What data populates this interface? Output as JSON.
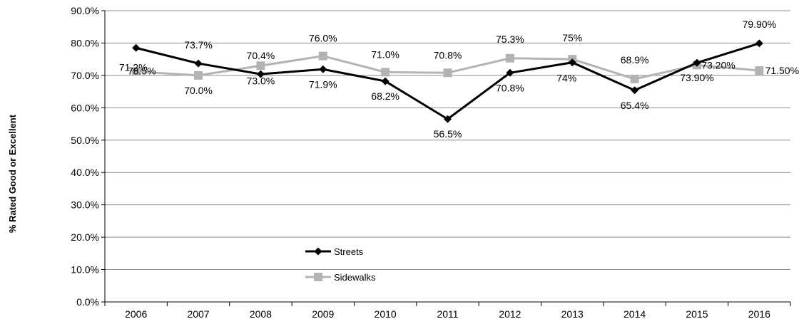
{
  "chart_data": {
    "type": "line",
    "ylabel": "% Rated Good or Excellent",
    "categories": [
      "2006",
      "2007",
      "2008",
      "2009",
      "2010",
      "2011",
      "2012",
      "2013",
      "2014",
      "2015",
      "2016"
    ],
    "ylim": [
      0,
      90
    ],
    "yticks": [
      0,
      10,
      20,
      30,
      40,
      50,
      60,
      70,
      80,
      90
    ],
    "ytick_labels": [
      "0.0%",
      "10.0%",
      "20.0%",
      "30.0%",
      "40.0%",
      "50.0%",
      "60.0%",
      "70.0%",
      "80.0%",
      "90.0%"
    ],
    "grid": true,
    "legend_position": "bottom-center",
    "series": [
      {
        "name": "Streets",
        "color": "#000000",
        "marker": "diamond",
        "values": [
          78.5,
          73.7,
          70.4,
          71.9,
          68.2,
          56.5,
          70.8,
          74.0,
          65.4,
          73.9,
          79.9
        ],
        "labels": [
          "78.5%",
          "73.7%",
          "70.4%",
          "71.9%",
          "68.2%",
          "56.5%",
          "70.8%",
          "74%",
          "65.4%",
          "73.90%",
          "79.90%"
        ]
      },
      {
        "name": "Sidewalks",
        "color": "#b3b3b3",
        "marker": "square",
        "values": [
          71.2,
          70.0,
          73.0,
          76.0,
          71.0,
          70.8,
          75.3,
          75.0,
          68.9,
          73.2,
          71.5
        ],
        "labels": [
          "71.2%",
          "70.0%",
          "73.0%",
          "76.0%",
          "71.0%",
          "70.8%",
          "75.3%",
          "75%",
          "68.9%",
          "73.20%",
          "71.50%"
        ]
      }
    ]
  }
}
